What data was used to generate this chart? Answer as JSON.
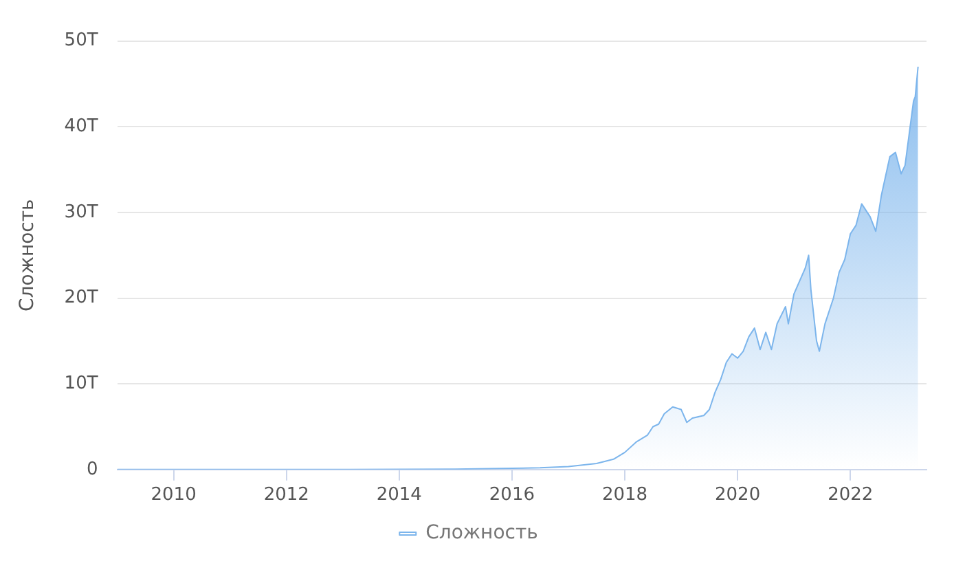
{
  "chart_data": {
    "type": "area",
    "ylabel": "Сложность",
    "legend": "bottom",
    "grid": "y",
    "marker": "none",
    "xlim": [
      2009,
      2023.35
    ],
    "xticks": [
      2010,
      2012,
      2014,
      2016,
      2018,
      2020,
      2022
    ],
    "ylim": [
      0,
      50
    ],
    "yticks": [
      0,
      {
        "value": 10,
        "label": "10T"
      },
      {
        "value": 20,
        "label": "20T"
      },
      {
        "value": 30,
        "label": "30T"
      },
      {
        "value": 40,
        "label": "40T"
      },
      {
        "value": 50,
        "label": "50T"
      }
    ],
    "series": [
      {
        "name": "Сложность",
        "color": "#7cb5ec",
        "x": [
          2009.0,
          2011.0,
          2013.0,
          2014.0,
          2015.0,
          2016.0,
          2016.5,
          2017.0,
          2017.5,
          2017.8,
          2018.0,
          2018.2,
          2018.4,
          2018.5,
          2018.6,
          2018.7,
          2018.85,
          2019.0,
          2019.1,
          2019.2,
          2019.4,
          2019.5,
          2019.6,
          2019.7,
          2019.8,
          2019.9,
          2020.0,
          2020.1,
          2020.2,
          2020.3,
          2020.4,
          2020.5,
          2020.6,
          2020.7,
          2020.85,
          2020.9,
          2021.0,
          2021.1,
          2021.2,
          2021.26,
          2021.3,
          2021.4,
          2021.45,
          2021.55,
          2021.7,
          2021.8,
          2021.9,
          2022.0,
          2022.1,
          2022.2,
          2022.35,
          2022.45,
          2022.55,
          2022.7,
          2022.8,
          2022.9,
          2022.97,
          2023.05,
          2023.12,
          2023.15,
          2023.2
        ],
        "values": [
          0,
          0,
          0.01,
          0.02,
          0.05,
          0.15,
          0.2,
          0.35,
          0.7,
          1.2,
          2.0,
          3.2,
          4.0,
          5.0,
          5.3,
          6.5,
          7.3,
          7.0,
          5.5,
          6.0,
          6.3,
          7.0,
          9.0,
          10.5,
          12.5,
          13.5,
          13.0,
          13.8,
          15.5,
          16.5,
          14.0,
          16.0,
          14.0,
          17.0,
          19.0,
          17.0,
          20.5,
          22.0,
          23.5,
          25.0,
          21.0,
          15.0,
          13.8,
          17.0,
          20.0,
          23.0,
          24.5,
          27.5,
          28.5,
          31.0,
          29.5,
          27.8,
          32.0,
          36.5,
          37.0,
          34.5,
          35.5,
          39.5,
          43.0,
          43.5,
          47.0
        ]
      }
    ]
  }
}
